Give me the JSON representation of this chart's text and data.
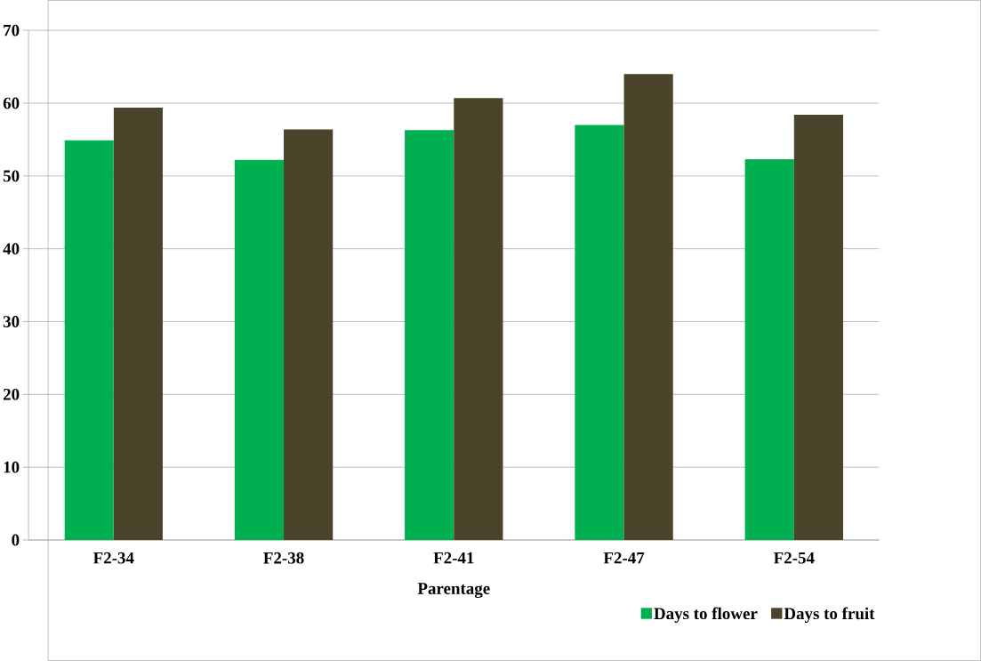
{
  "chart_data": {
    "type": "bar",
    "xlabel": "Parentage",
    "categories": [
      "F2-34",
      "F2-38",
      "F2-41",
      "F2-47",
      "F2-54"
    ],
    "series": [
      {
        "name": "Days to flower",
        "color": "#00b050",
        "values": [
          54.9,
          52.2,
          56.3,
          57.0,
          52.3
        ]
      },
      {
        "name": "Days to fruit",
        "color": "#4a452a",
        "values": [
          59.4,
          56.4,
          60.7,
          64.0,
          58.4
        ]
      }
    ],
    "ylim": [
      0,
      70
    ],
    "yticks": [
      0,
      10,
      20,
      30,
      40,
      50,
      60,
      70
    ],
    "grid": "y",
    "legend": "bottom right"
  }
}
